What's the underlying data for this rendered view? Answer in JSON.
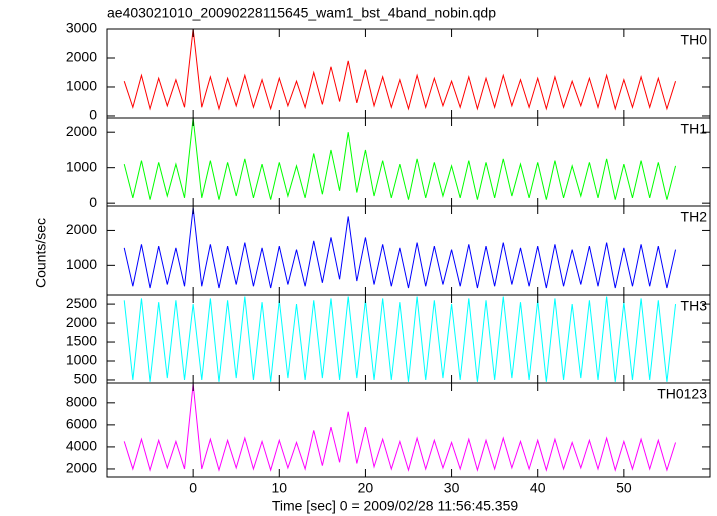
{
  "title": "ae403021010_20090228115645_wam1_bst_4band_nobin.qdp",
  "x_label": "Time [sec] 0 = 2009/02/28 11:56:45.359",
  "y_label": "Counts/sec",
  "xlim": [
    -10,
    60
  ],
  "xticks": [
    0,
    10,
    20,
    30,
    40,
    50
  ],
  "x": [
    -8,
    -7,
    -6,
    -5,
    -4,
    -3,
    -2,
    -1,
    0,
    1,
    2,
    3,
    4,
    5,
    6,
    7,
    8,
    9,
    10,
    11,
    12,
    13,
    14,
    15,
    16,
    17,
    18,
    19,
    20,
    21,
    22,
    23,
    24,
    25,
    26,
    27,
    28,
    29,
    30,
    31,
    32,
    33,
    34,
    35,
    36,
    37,
    38,
    39,
    40,
    41,
    42,
    43,
    44,
    45,
    46,
    47,
    48,
    49,
    50,
    51,
    52,
    53,
    54,
    55,
    56
  ],
  "chart_data": [
    {
      "type": "line",
      "name": "TH0",
      "color": "#ff0000",
      "ylim": [
        -70,
        3000
      ],
      "yticks": [
        0,
        1000,
        2000,
        3000
      ],
      "values": [
        1200,
        300,
        1400,
        250,
        1300,
        350,
        1250,
        300,
        3000,
        300,
        1350,
        250,
        1300,
        350,
        1400,
        300,
        1250,
        250,
        1300,
        350,
        1200,
        300,
        1500,
        400,
        1700,
        500,
        1900,
        450,
        1600,
        350,
        1350,
        300,
        1250,
        250,
        1400,
        300,
        1300,
        350,
        1200,
        300,
        1350,
        250,
        1300,
        300,
        1400,
        350,
        1250,
        300,
        1300,
        250,
        1350,
        300,
        1200,
        350,
        1300,
        300,
        1400,
        250,
        1250,
        300,
        1350,
        300,
        1300,
        250,
        1200
      ]
    },
    {
      "type": "line",
      "name": "TH1",
      "color": "#00ff00",
      "ylim": [
        -80,
        2400
      ],
      "yticks": [
        0,
        1000,
        2000
      ],
      "values": [
        1100,
        150,
        1200,
        100,
        1150,
        200,
        1100,
        150,
        2400,
        150,
        1200,
        100,
        1150,
        200,
        1250,
        150,
        1100,
        100,
        1150,
        200,
        1050,
        150,
        1400,
        250,
        1500,
        350,
        2000,
        300,
        1500,
        200,
        1200,
        150,
        1100,
        100,
        1250,
        150,
        1150,
        200,
        1050,
        150,
        1200,
        100,
        1150,
        150,
        1250,
        200,
        1100,
        150,
        1150,
        100,
        1200,
        150,
        1050,
        200,
        1150,
        150,
        1250,
        100,
        1100,
        150,
        1200,
        150,
        1150,
        100,
        1050
      ]
    },
    {
      "type": "line",
      "name": "TH2",
      "color": "#0000ff",
      "ylim": [
        150,
        2700
      ],
      "yticks": [
        1000,
        2000
      ],
      "values": [
        1500,
        400,
        1600,
        350,
        1550,
        450,
        1500,
        400,
        2650,
        400,
        1600,
        350,
        1550,
        450,
        1650,
        400,
        1500,
        350,
        1550,
        450,
        1450,
        400,
        1700,
        500,
        1800,
        600,
        2400,
        550,
        1800,
        450,
        1600,
        400,
        1500,
        350,
        1650,
        400,
        1550,
        450,
        1450,
        400,
        1600,
        350,
        1550,
        400,
        1650,
        450,
        1500,
        400,
        1550,
        350,
        1600,
        400,
        1450,
        450,
        1550,
        400,
        1650,
        350,
        1500,
        400,
        1600,
        400,
        1550,
        350,
        1450
      ]
    },
    {
      "type": "line",
      "name": "TH3",
      "color": "#00ffff",
      "ylim": [
        420,
        2740
      ],
      "yticks": [
        500,
        1000,
        1500,
        2000,
        2500
      ],
      "values": [
        2600,
        500,
        2650,
        450,
        2550,
        550,
        2600,
        500,
        2500,
        500,
        2650,
        450,
        2600,
        550,
        2700,
        500,
        2550,
        450,
        2600,
        550,
        2500,
        500,
        2600,
        550,
        2650,
        500,
        2700,
        550,
        2600,
        500,
        2650,
        500,
        2550,
        450,
        2700,
        500,
        2600,
        550,
        2500,
        500,
        2650,
        450,
        2600,
        500,
        2700,
        550,
        2550,
        500,
        2600,
        450,
        2650,
        500,
        2500,
        550,
        2600,
        500,
        2700,
        450,
        2550,
        500,
        2650,
        500,
        2600,
        450,
        2500
      ]
    },
    {
      "type": "line",
      "name": "TH0123",
      "color": "#ff00ff",
      "ylim": [
        1270,
        9800
      ],
      "yticks": [
        2000,
        4000,
        6000,
        8000
      ],
      "values": [
        4500,
        2000,
        4700,
        1900,
        4600,
        2100,
        4500,
        2000,
        9700,
        2000,
        4700,
        1900,
        4600,
        2100,
        4800,
        2000,
        4500,
        1900,
        4600,
        2100,
        4400,
        2000,
        5500,
        2300,
        5800,
        2600,
        7200,
        2500,
        5800,
        2200,
        4700,
        2000,
        4500,
        1900,
        4800,
        2000,
        4600,
        2100,
        4400,
        2000,
        4700,
        1900,
        4600,
        2000,
        4800,
        2100,
        4500,
        2000,
        4600,
        1900,
        4700,
        2000,
        4400,
        2100,
        4600,
        2000,
        4800,
        1900,
        4500,
        2000,
        4700,
        2000,
        4600,
        1900,
        4400
      ]
    }
  ]
}
